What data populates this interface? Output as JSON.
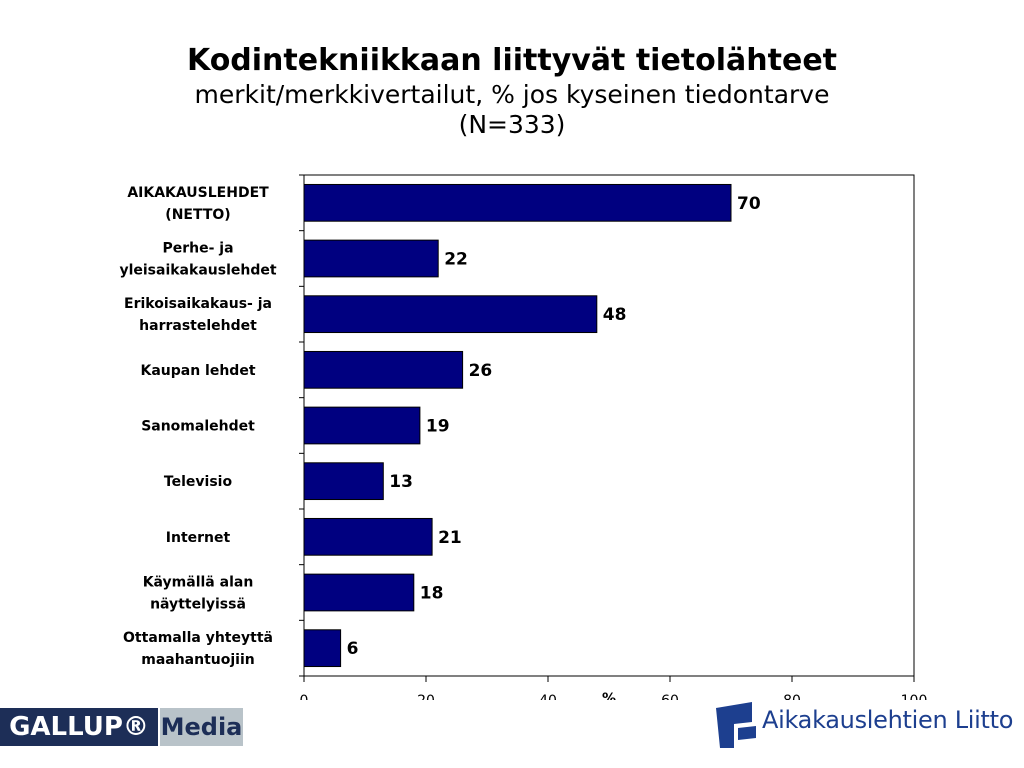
{
  "chart_data": {
    "type": "bar",
    "orientation": "horizontal",
    "title": "Kodintekniikkaan liittyvät tietolähteet",
    "subtitle_lines": [
      "merkit/merkkivertailut, % jos kyseinen tiedontarve",
      "(N=333)"
    ],
    "xlabel": "%",
    "xlim": [
      0,
      100
    ],
    "xticks": [
      0,
      20,
      40,
      60,
      80,
      100
    ],
    "grid": false,
    "bar_color": "#000080",
    "categories": [
      [
        "AIKAKAUSLEHDET",
        "(NETTO)"
      ],
      [
        "Perhe- ja",
        "yleisaikakauslehdet"
      ],
      [
        "Erikoisaikakaus- ja",
        "harrastelehdet"
      ],
      [
        "Kaupan lehdet"
      ],
      [
        "Sanomalehdet"
      ],
      [
        "Televisio"
      ],
      [
        "Internet"
      ],
      [
        "Käymällä alan",
        "näyttelyissä"
      ],
      [
        "Ottamalla yhteyttä",
        "maahantuojiin"
      ]
    ],
    "values": [
      70,
      22,
      48,
      26,
      19,
      13,
      21,
      18,
      6
    ]
  },
  "logos": {
    "gallup_main": "GALLUP®",
    "gallup_media": "Media",
    "aikakauslehtien_liitto": "Aikakauslehtien Liitto",
    "gallup_color": "#1d2e57",
    "liitto_color": "#1d3f8f"
  }
}
